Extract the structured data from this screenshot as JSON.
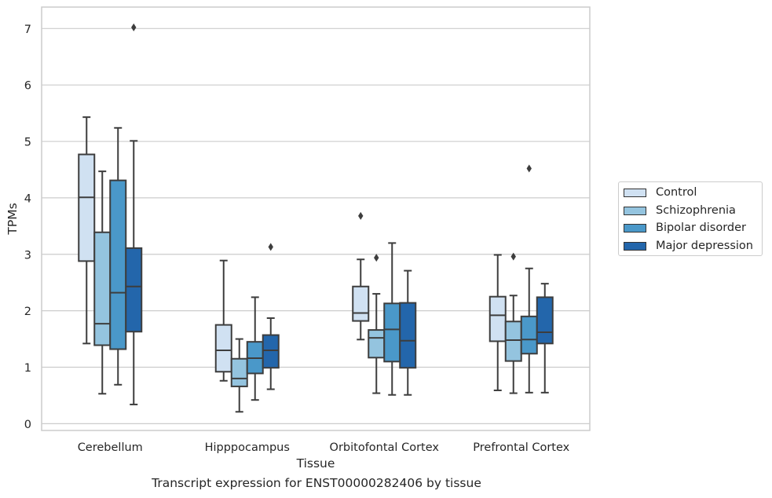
{
  "caption": "Transcript expression for ENST00000282406 by tissue",
  "chart_data": {
    "type": "box",
    "xlabel": "Tissue",
    "ylabel": "TPMs",
    "ylim": [
      -0.12,
      7.38
    ],
    "yticks": [
      0,
      1,
      2,
      3,
      4,
      5,
      6,
      7
    ],
    "grid": "horizontal",
    "legend_position": "right",
    "categories": [
      "Cerebellum",
      "Hipppocampus",
      "Orbitofontal Cortex",
      "Prefrontal Cortex"
    ],
    "series": [
      {
        "name": "Control",
        "color": "#d0e1f2",
        "boxes": [
          {
            "whisker_low": 1.42,
            "q1": 2.88,
            "median": 4.01,
            "q3": 4.77,
            "whisker_high": 5.43,
            "outliers": []
          },
          {
            "whisker_low": 0.76,
            "q1": 0.92,
            "median": 1.3,
            "q3": 1.75,
            "whisker_high": 2.89,
            "outliers": []
          },
          {
            "whisker_low": 1.49,
            "q1": 1.82,
            "median": 1.96,
            "q3": 2.43,
            "whisker_high": 2.91,
            "outliers": [
              3.68
            ]
          },
          {
            "whisker_low": 0.59,
            "q1": 1.46,
            "median": 1.92,
            "q3": 2.25,
            "whisker_high": 2.99,
            "outliers": []
          }
        ]
      },
      {
        "name": "Schizophrenia",
        "color": "#94c4df",
        "boxes": [
          {
            "whisker_low": 0.53,
            "q1": 1.39,
            "median": 1.77,
            "q3": 3.39,
            "whisker_high": 4.47,
            "outliers": []
          },
          {
            "whisker_low": 0.21,
            "q1": 0.66,
            "median": 0.8,
            "q3": 1.15,
            "whisker_high": 1.5,
            "outliers": []
          },
          {
            "whisker_low": 0.54,
            "q1": 1.17,
            "median": 1.52,
            "q3": 1.66,
            "whisker_high": 2.3,
            "outliers": [
              2.94
            ]
          },
          {
            "whisker_low": 0.54,
            "q1": 1.11,
            "median": 1.48,
            "q3": 1.81,
            "whisker_high": 2.27,
            "outliers": [
              2.96
            ]
          }
        ]
      },
      {
        "name": "Bipolar disorder",
        "color": "#4a98c9",
        "boxes": [
          {
            "whisker_low": 0.69,
            "q1": 1.32,
            "median": 2.32,
            "q3": 4.31,
            "whisker_high": 5.24,
            "outliers": []
          },
          {
            "whisker_low": 0.42,
            "q1": 0.89,
            "median": 1.16,
            "q3": 1.45,
            "whisker_high": 2.24,
            "outliers": []
          },
          {
            "whisker_low": 0.51,
            "q1": 1.1,
            "median": 1.67,
            "q3": 2.13,
            "whisker_high": 3.2,
            "outliers": []
          },
          {
            "whisker_low": 0.55,
            "q1": 1.24,
            "median": 1.49,
            "q3": 1.9,
            "whisker_high": 2.75,
            "outliers": [
              4.52
            ]
          }
        ]
      },
      {
        "name": "Major depression",
        "color": "#2366ab",
        "boxes": [
          {
            "whisker_low": 0.34,
            "q1": 1.63,
            "median": 2.43,
            "q3": 3.11,
            "whisker_high": 5.01,
            "outliers": [
              7.02
            ]
          },
          {
            "whisker_low": 0.61,
            "q1": 0.99,
            "median": 1.3,
            "q3": 1.57,
            "whisker_high": 1.87,
            "outliers": [
              3.13
            ]
          },
          {
            "whisker_low": 0.51,
            "q1": 0.99,
            "median": 1.47,
            "q3": 2.14,
            "whisker_high": 2.71,
            "outliers": []
          },
          {
            "whisker_low": 0.55,
            "q1": 1.42,
            "median": 1.62,
            "q3": 2.24,
            "whisker_high": 2.48,
            "outliers": []
          }
        ]
      }
    ]
  }
}
